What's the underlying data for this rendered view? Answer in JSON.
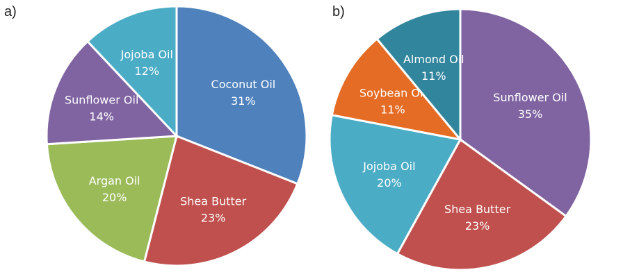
{
  "chart_data": [
    {
      "type": "pie",
      "panel_label": "a)",
      "slices": [
        {
          "label": "Coconut Oil",
          "value": 31,
          "value_label": "31%",
          "color": "#4F81BD"
        },
        {
          "label": "Shea Butter",
          "value": 23,
          "value_label": "23%",
          "color": "#C0504D"
        },
        {
          "label": "Argan Oil",
          "value": 20,
          "value_label": "20%",
          "color": "#9BBB59"
        },
        {
          "label": "Sunflower Oil",
          "value": 14,
          "value_label": "14%",
          "color": "#8064A2"
        },
        {
          "label": "Jojoba Oil",
          "value": 12,
          "value_label": "12%",
          "color": "#4BACC6"
        }
      ],
      "start_angle_deg": 0,
      "direction": "clockwise"
    },
    {
      "type": "pie",
      "panel_label": "b)",
      "slices": [
        {
          "label": "Sunflower Oil",
          "value": 35,
          "value_label": "35%",
          "color": "#8064A2"
        },
        {
          "label": "Shea Butter",
          "value": 23,
          "value_label": "23%",
          "color": "#C0504D"
        },
        {
          "label": "Jojoba Oil",
          "value": 20,
          "value_label": "20%",
          "color": "#4BACC6"
        },
        {
          "label": "Soybean Oil",
          "value": 11,
          "value_label": "11%",
          "color": "#E46C24"
        },
        {
          "label": "Almond Oil",
          "value": 11,
          "value_label": "11%",
          "color": "#31859C"
        }
      ],
      "start_angle_deg": 0,
      "direction": "clockwise"
    }
  ]
}
